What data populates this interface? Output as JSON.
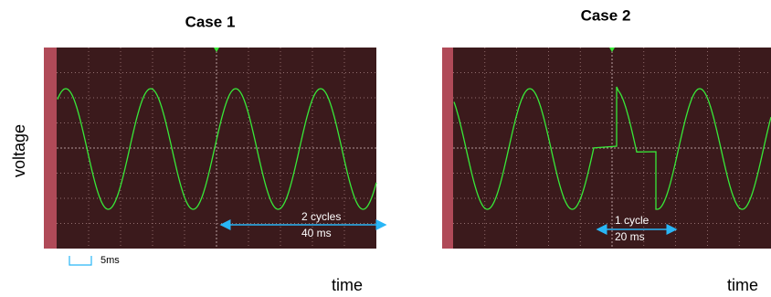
{
  "panels": [
    {
      "title": "Case 1",
      "x_label": "time",
      "annotation": [
        "2 cycles",
        "40 ms"
      ]
    },
    {
      "title": "Case 2",
      "x_label": "time",
      "annotation": [
        "1 cycle",
        "20 ms"
      ]
    }
  ],
  "y_label": "voltage",
  "scale_label": "5ms"
}
